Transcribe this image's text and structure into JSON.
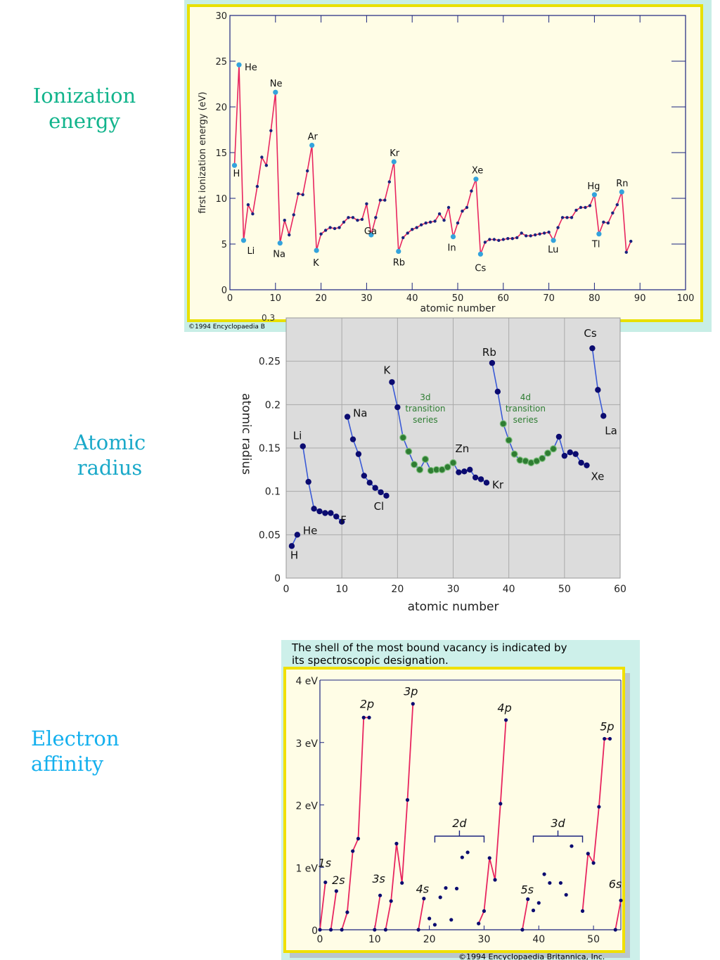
{
  "side_labels": {
    "ionization": "Ionization\nenergy",
    "atomic": "Atomic\nradius",
    "electron": "Electron\naffinity"
  },
  "colors": {
    "ie_frame_bg": "#c8eee6",
    "ie_plot_bg": "#fffde6",
    "ie_border": "#e8e000",
    "ie_line": "#e8255f",
    "ie_dot": "#1a237e",
    "ie_highlight": "#33a3dc",
    "ie_axis": "#1a237e",
    "ar_plot_bg": "#dcdcdc",
    "ar_grid": "#aaaaaa",
    "ar_line": "#3a5ad6",
    "ar_dot": "#0b0b70",
    "ar_transition": "#2e7d32",
    "ea_frame_bg": "#cdf0ea",
    "ea_border": "#f0e000",
    "ea_line": "#e8255f",
    "ea_dot": "#0b0b70"
  },
  "ie_panel": {
    "copyright": "©1994 Encyclopaedia B",
    "stray_tick": "0.3"
  },
  "ea_panel": {
    "note_line1": "The shell of the most bound vacancy is indicated by",
    "note_line2": "its spectroscopic designation.",
    "copyright": "©1994 Encyclopaedia Britannica, Inc."
  },
  "chart_data": [
    {
      "type": "line",
      "xlabel": "atomic number",
      "ylabel": "first ionization energy (eV)",
      "xlim": [
        0,
        100
      ],
      "ylim": [
        0,
        30
      ],
      "xticks": [
        0,
        10,
        20,
        30,
        40,
        50,
        60,
        70,
        80,
        90,
        100
      ],
      "yticks": [
        0,
        5,
        10,
        15,
        20,
        25,
        30
      ],
      "grid": false,
      "x": [
        1,
        2,
        3,
        4,
        5,
        6,
        7,
        8,
        9,
        10,
        11,
        12,
        13,
        14,
        15,
        16,
        17,
        18,
        19,
        20,
        21,
        22,
        23,
        24,
        25,
        26,
        27,
        28,
        29,
        30,
        31,
        32,
        33,
        34,
        35,
        36,
        37,
        38,
        39,
        40,
        41,
        42,
        43,
        44,
        45,
        46,
        47,
        48,
        49,
        50,
        51,
        52,
        53,
        54,
        55,
        56,
        57,
        58,
        59,
        60,
        61,
        62,
        63,
        64,
        65,
        66,
        67,
        68,
        69,
        70,
        71,
        72,
        73,
        74,
        75,
        76,
        77,
        78,
        79,
        80,
        81,
        82,
        83,
        84,
        85,
        86,
        87,
        88
      ],
      "values": [
        13.6,
        24.6,
        5.4,
        9.3,
        8.3,
        11.3,
        14.5,
        13.6,
        17.4,
        21.6,
        5.1,
        7.6,
        6.0,
        8.2,
        10.5,
        10.4,
        13.0,
        15.8,
        4.3,
        6.1,
        6.5,
        6.8,
        6.7,
        6.8,
        7.4,
        7.9,
        7.9,
        7.6,
        7.7,
        9.4,
        6.0,
        7.9,
        9.8,
        9.8,
        11.8,
        14.0,
        4.2,
        5.7,
        6.2,
        6.6,
        6.8,
        7.1,
        7.3,
        7.4,
        7.5,
        8.3,
        7.6,
        9.0,
        5.8,
        7.3,
        8.6,
        9.0,
        10.8,
        12.1,
        3.9,
        5.2,
        5.5,
        5.5,
        5.4,
        5.5,
        5.6,
        5.6,
        5.7,
        6.2,
        5.9,
        5.9,
        6.0,
        6.1,
        6.2,
        6.3,
        5.4,
        6.8,
        7.9,
        7.9,
        7.9,
        8.7,
        9.0,
        9.0,
        9.2,
        10.4,
        6.1,
        7.4,
        7.3,
        8.4,
        9.3,
        10.7,
        4.1,
        5.3
      ],
      "annotations": [
        {
          "label": "H",
          "x": 1
        },
        {
          "label": "He",
          "x": 2
        },
        {
          "label": "Li",
          "x": 3
        },
        {
          "label": "Ne",
          "x": 10
        },
        {
          "label": "Na",
          "x": 11
        },
        {
          "label": "Ar",
          "x": 18
        },
        {
          "label": "K",
          "x": 19
        },
        {
          "label": "Ga",
          "x": 31
        },
        {
          "label": "Kr",
          "x": 36
        },
        {
          "label": "Rb",
          "x": 37
        },
        {
          "label": "In",
          "x": 49
        },
        {
          "label": "Xe",
          "x": 54
        },
        {
          "label": "Cs",
          "x": 55
        },
        {
          "label": "Lu",
          "x": 71
        },
        {
          "label": "Hg",
          "x": 80
        },
        {
          "label": "Tl",
          "x": 81
        },
        {
          "label": "Rn",
          "x": 86
        }
      ]
    },
    {
      "type": "scatter",
      "xlabel": "atomic number",
      "ylabel": "atomic radius",
      "xlim": [
        0,
        60
      ],
      "ylim": [
        0,
        0.3
      ],
      "xticks": [
        0,
        10,
        20,
        30,
        40,
        50,
        60
      ],
      "yticks": [
        0,
        0.05,
        0.1,
        0.15,
        0.2,
        0.25
      ],
      "grid": true,
      "segments": [
        {
          "x": [
            1,
            2
          ],
          "values": [
            0.037,
            0.05
          ]
        },
        {
          "x": [
            3,
            4,
            5,
            6,
            7,
            8,
            9,
            10
          ],
          "values": [
            0.152,
            0.111,
            0.08,
            0.077,
            0.075,
            0.075,
            0.071,
            0.065
          ]
        },
        {
          "x": [
            11,
            12,
            13,
            14,
            15,
            16,
            17,
            18
          ],
          "values": [
            0.186,
            0.16,
            0.143,
            0.118,
            0.11,
            0.104,
            0.099,
            0.095
          ]
        },
        {
          "x": [
            19,
            20,
            21,
            22,
            23,
            24,
            25,
            26,
            27,
            28,
            29,
            30,
            31,
            32,
            33,
            34,
            35,
            36
          ],
          "values": [
            0.226,
            0.197,
            0.162,
            0.146,
            0.131,
            0.125,
            0.137,
            0.124,
            0.125,
            0.125,
            0.128,
            0.133,
            0.122,
            0.123,
            0.125,
            0.116,
            0.114,
            0.11
          ]
        },
        {
          "x": [
            37,
            38,
            39,
            40,
            41,
            42,
            43,
            44,
            45,
            46,
            47,
            48,
            49,
            50,
            51,
            52,
            53,
            54
          ],
          "values": [
            0.248,
            0.215,
            0.178,
            0.159,
            0.143,
            0.136,
            0.135,
            0.133,
            0.135,
            0.138,
            0.144,
            0.149,
            0.163,
            0.141,
            0.145,
            0.143,
            0.133,
            0.13
          ]
        },
        {
          "x": [
            55,
            56,
            57
          ],
          "values": [
            0.265,
            0.217,
            0.187
          ]
        }
      ],
      "transition_ranges": [
        [
          21,
          30
        ],
        [
          39,
          48
        ]
      ],
      "annotations": [
        {
          "label": "H",
          "x": 1
        },
        {
          "label": "He",
          "x": 2
        },
        {
          "label": "Li",
          "x": 3
        },
        {
          "label": "F",
          "x": 9
        },
        {
          "label": "Na",
          "x": 11
        },
        {
          "label": "Cl",
          "x": 17
        },
        {
          "label": "K",
          "x": 19
        },
        {
          "label": "Zn",
          "x": 30
        },
        {
          "label": "Kr",
          "x": 36
        },
        {
          "label": "Rb",
          "x": 37
        },
        {
          "label": "Cs",
          "x": 55
        },
        {
          "label": "La",
          "x": 57
        },
        {
          "label": "Xe",
          "x": 54
        }
      ],
      "region_labels": [
        {
          "lines": [
            "3d",
            "transition",
            "series"
          ]
        },
        {
          "lines": [
            "4d",
            "transition",
            "series"
          ]
        }
      ]
    },
    {
      "type": "line",
      "xlabel": "",
      "ylabel": "",
      "xlim": [
        0,
        55
      ],
      "ylim": [
        0,
        4
      ],
      "xticks": [
        0,
        10,
        20,
        30,
        40,
        50
      ],
      "yticks": [
        0,
        1,
        2,
        3,
        4
      ],
      "ytick_labels": [
        "0",
        "1 eV",
        "2 eV",
        "3 eV",
        "4 eV"
      ],
      "grid": false,
      "connected_runs": [
        {
          "x": [
            0,
            1
          ],
          "values": [
            0.0,
            0.76
          ]
        },
        {
          "x": [
            2,
            3
          ],
          "values": [
            0.0,
            0.62
          ]
        },
        {
          "x": [
            4,
            5,
            6,
            7,
            8,
            9
          ],
          "values": [
            0.0,
            0.28,
            1.26,
            1.46,
            3.4,
            3.4
          ]
        },
        {
          "x": [
            10,
            11
          ],
          "values": [
            0.0,
            0.55
          ]
        },
        {
          "x": [
            12,
            13,
            14,
            15,
            16,
            17
          ],
          "values": [
            0.0,
            0.46,
            1.38,
            0.75,
            2.08,
            3.62
          ]
        },
        {
          "x": [
            18,
            19
          ],
          "values": [
            0.0,
            0.5
          ]
        },
        {
          "x": [
            29,
            30,
            31,
            32,
            33,
            34
          ],
          "values": [
            0.1,
            0.3,
            1.15,
            0.8,
            2.02,
            3.36
          ]
        },
        {
          "x": [
            37,
            38
          ],
          "values": [
            0.0,
            0.49
          ]
        },
        {
          "x": [
            48,
            49,
            50,
            51,
            52,
            53
          ],
          "values": [
            0.3,
            1.22,
            1.07,
            1.97,
            3.06,
            3.06
          ]
        },
        {
          "x": [
            54,
            55
          ],
          "values": [
            0.0,
            0.47
          ]
        }
      ],
      "isolated_points": [
        {
          "x": 20,
          "value": 0.18
        },
        {
          "x": 21,
          "value": 0.08
        },
        {
          "x": 22,
          "value": 0.52
        },
        {
          "x": 23,
          "value": 0.67
        },
        {
          "x": 24,
          "value": 0.16
        },
        {
          "x": 25,
          "value": 0.66
        },
        {
          "x": 26,
          "value": 1.16
        },
        {
          "x": 27,
          "value": 1.24
        },
        {
          "x": 39,
          "value": 0.31
        },
        {
          "x": 40,
          "value": 0.43
        },
        {
          "x": 41,
          "value": 0.89
        },
        {
          "x": 42,
          "value": 0.75
        },
        {
          "x": 44,
          "value": 0.75
        },
        {
          "x": 45,
          "value": 0.56
        },
        {
          "x": 46,
          "value": 1.34
        }
      ],
      "shell_labels": [
        {
          "label": "1s",
          "x": 1
        },
        {
          "label": "2s",
          "x": 3
        },
        {
          "label": "2p",
          "x": 9
        },
        {
          "label": "3s",
          "x": 11
        },
        {
          "label": "3p",
          "x": 17
        },
        {
          "label": "4s",
          "x": 19
        },
        {
          "label": "4p",
          "x": 34
        },
        {
          "label": "5s",
          "x": 38
        },
        {
          "label": "5p",
          "x": 53
        },
        {
          "label": "6s",
          "x": 55
        }
      ],
      "brackets": [
        {
          "label": "2d",
          "from": 21,
          "to": 30
        },
        {
          "label": "3d",
          "from": 39,
          "to": 48
        }
      ]
    }
  ]
}
